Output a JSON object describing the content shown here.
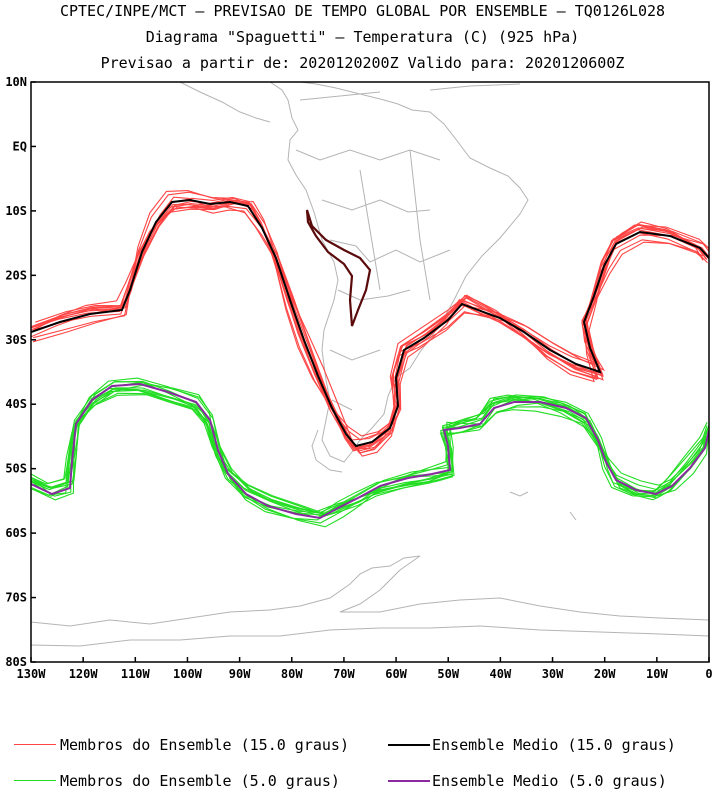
{
  "titles": {
    "line1": "CPTEC/INPE/MCT – PREVISAO DE TEMPO GLOBAL POR ENSEMBLE – TQ0126L028",
    "line2": "Diagrama \"Spaguetti\" – Temperatura (C) (925 hPa)",
    "line3": "Previsao a partir de: 2020120200Z  Valido para: 2020120600Z"
  },
  "map": {
    "lon_range": [
      -130,
      0
    ],
    "lat_range": [
      -80,
      10
    ],
    "lat_ticks": [
      "10N",
      "EQ",
      "10S",
      "20S",
      "30S",
      "40S",
      "50S",
      "60S",
      "70S",
      "80S"
    ],
    "lon_ticks": [
      "130W",
      "120W",
      "110W",
      "100W",
      "90W",
      "80W",
      "70W",
      "60W",
      "50W",
      "40W",
      "30W",
      "20W",
      "10W",
      "0"
    ],
    "colors": {
      "coast": "#b4b4b4",
      "members_15": "#ff4444",
      "mean_15": "#000000",
      "members_5": "#22dd22",
      "mean_5": "#8a2aa0",
      "andes_isotherm": "#5a0a0a"
    }
  },
  "legend": {
    "members_15": "Membros do Ensemble (15.0 graus)",
    "mean_15": "Ensemble Medio (15.0 graus)",
    "members_5": "Membros do Ensemble (5.0 graus)",
    "mean_5": "Ensemble Medio (5.0 graus)"
  }
}
